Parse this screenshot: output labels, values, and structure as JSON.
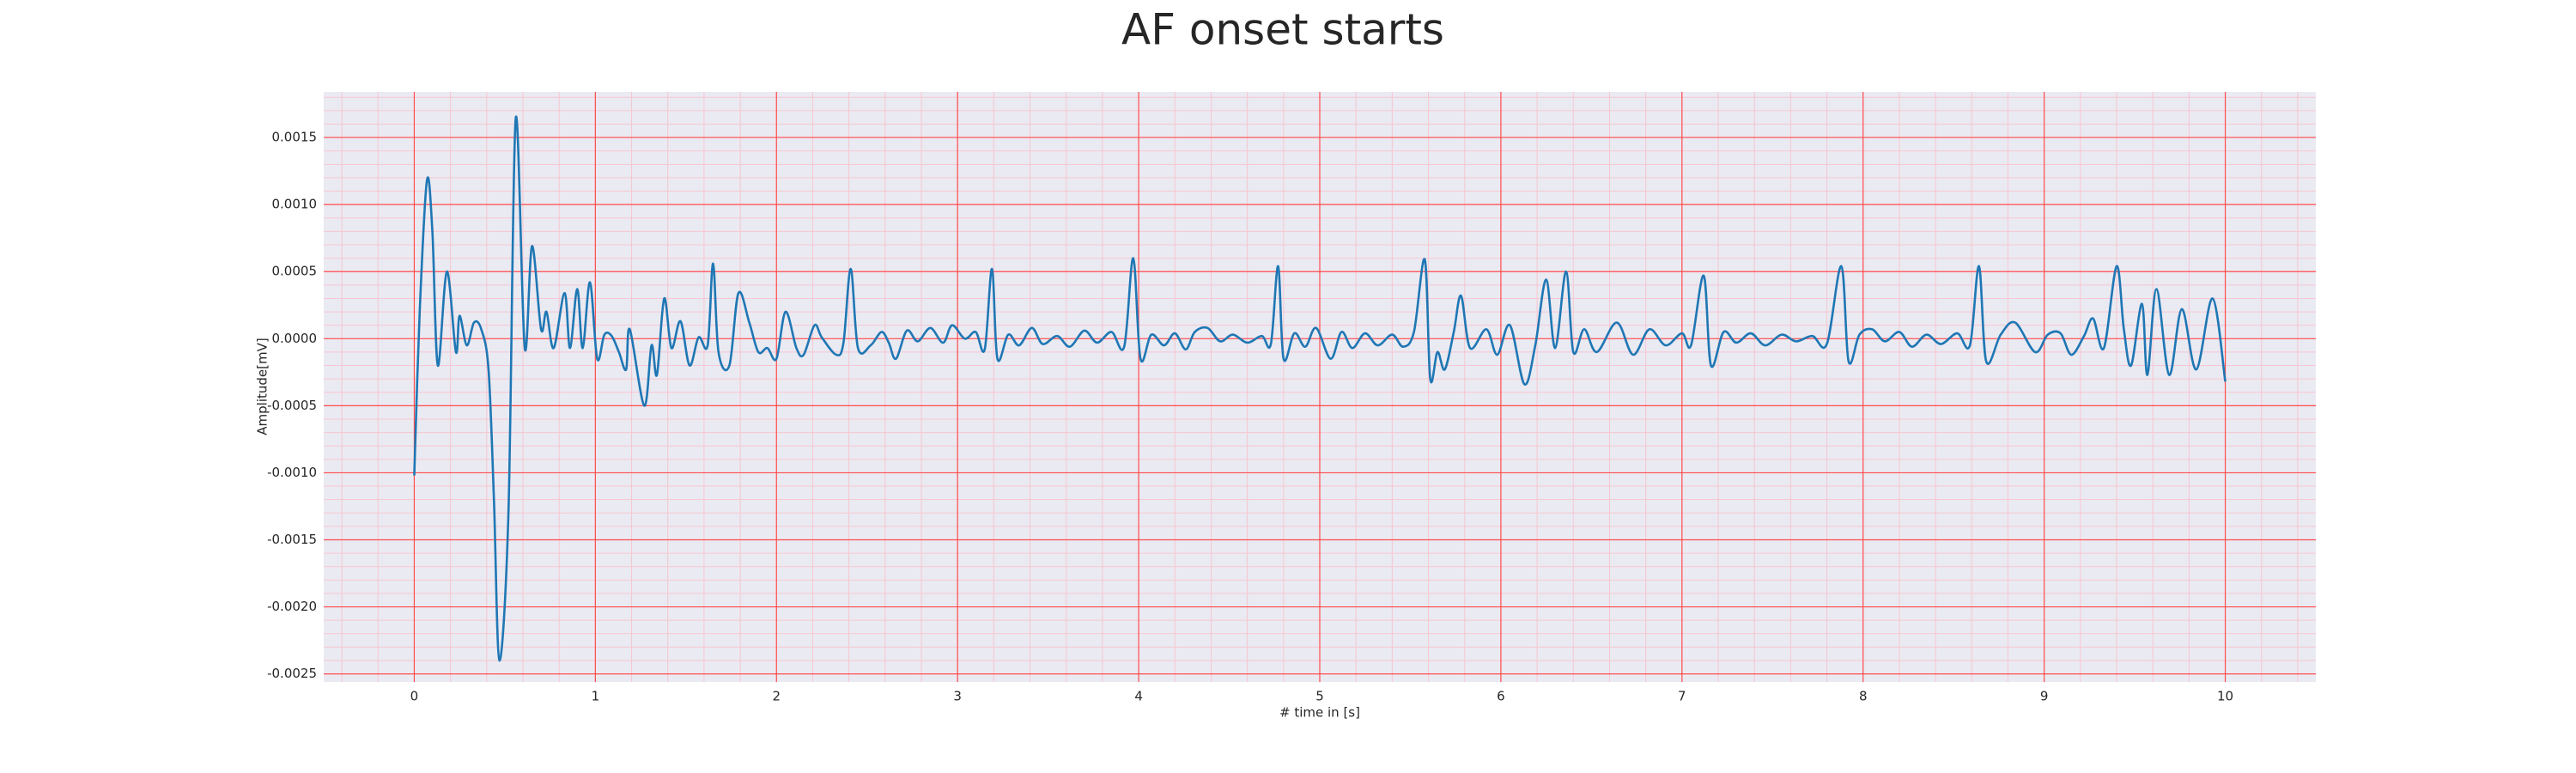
{
  "chart_data": {
    "type": "line",
    "title": "AF onset starts",
    "x_label": "# time in [s]",
    "y_label": "Amplitude[mV]",
    "color": "#1f77b4",
    "grid": true,
    "minor_grid": true,
    "grid_color": "#ff4d4d",
    "minor_grid_color": "#f7c6d0",
    "background": "#eaeaf2",
    "xlim": [
      -0.5,
      10.5
    ],
    "ylim": [
      -0.00256,
      0.00184
    ],
    "xticks": [
      0,
      1,
      2,
      3,
      4,
      5,
      6,
      7,
      8,
      9,
      10
    ],
    "yticks": [
      {
        "value": -0.0025,
        "label": "-0.0025"
      },
      {
        "value": -0.002,
        "label": "-0.0020"
      },
      {
        "value": -0.0015,
        "label": "-0.0015"
      },
      {
        "value": -0.001,
        "label": "-0.0010"
      },
      {
        "value": -0.0005,
        "label": "-0.0005"
      },
      {
        "value": 0,
        "label": "0.0000"
      },
      {
        "value": 0.0005,
        "label": "0.0005"
      },
      {
        "value": 0.001,
        "label": "0.0010"
      },
      {
        "value": 0.0015,
        "label": "0.0015"
      }
    ],
    "x": [
      0,
      0.03,
      0.07,
      0.1,
      0.13,
      0.18,
      0.23,
      0.25,
      0.29,
      0.33,
      0.37,
      0.41,
      0.44,
      0.47,
      0.52,
      0.56,
      0.61,
      0.65,
      0.7,
      0.73,
      0.77,
      0.83,
      0.86,
      0.9,
      0.93,
      0.97,
      1.01,
      1.05,
      1.09,
      1.13,
      1.17,
      1.19,
      1.27,
      1.31,
      1.34,
      1.38,
      1.42,
      1.47,
      1.52,
      1.57,
      1.62,
      1.65,
      1.68,
      1.74,
      1.79,
      1.85,
      1.9,
      1.95,
      2.0,
      2.05,
      2.11,
      2.15,
      2.21,
      2.25,
      2.33,
      2.37,
      2.41,
      2.45,
      2.52,
      2.58,
      2.62,
      2.66,
      2.72,
      2.78,
      2.85,
      2.92,
      2.97,
      3.04,
      3.1,
      3.15,
      3.19,
      3.22,
      3.28,
      3.34,
      3.41,
      3.47,
      3.55,
      3.62,
      3.7,
      3.77,
      3.85,
      3.92,
      3.97,
      4.01,
      4.07,
      4.14,
      4.2,
      4.26,
      4.31,
      4.38,
      4.45,
      4.52,
      4.6,
      4.68,
      4.73,
      4.77,
      4.8,
      4.86,
      4.92,
      4.98,
      5.06,
      5.12,
      5.18,
      5.25,
      5.32,
      5.4,
      5.46,
      5.52,
      5.58,
      5.61,
      5.65,
      5.69,
      5.74,
      5.78,
      5.83,
      5.92,
      5.98,
      6.05,
      6.13,
      6.19,
      6.25,
      6.3,
      6.36,
      6.4,
      6.46,
      6.53,
      6.64,
      6.73,
      6.82,
      6.91,
      7.0,
      7.05,
      7.12,
      7.16,
      7.23,
      7.3,
      7.38,
      7.46,
      7.55,
      7.63,
      7.72,
      7.8,
      7.88,
      7.92,
      7.98,
      8.05,
      8.12,
      8.2,
      8.27,
      8.35,
      8.43,
      8.52,
      8.59,
      8.64,
      8.68,
      8.76,
      8.84,
      8.95,
      9.02,
      9.09,
      9.15,
      9.22,
      9.27,
      9.33,
      9.4,
      9.44,
      9.48,
      9.54,
      9.57,
      9.62,
      9.69,
      9.76,
      9.84,
      9.93,
      10.0
    ],
    "values": [
      -0.00102,
      0.0002,
      0.00118,
      0.0008,
      -0.0002,
      0.0005,
      -0.0001,
      0.00017,
      -5e-05,
      0.00012,
      7e-05,
      -0.00023,
      -0.0012,
      -0.0024,
      -0.0013,
      0.00164,
      -7e-05,
      0.00069,
      7e-05,
      0.0002,
      -7e-05,
      0.00034,
      -7e-05,
      0.00037,
      -7e-05,
      0.00042,
      -0.00015,
      3e-05,
      2e-05,
      -0.0001,
      -0.00023,
      7e-05,
      -0.0005,
      -5e-05,
      -0.00027,
      0.0003,
      -7e-05,
      0.00013,
      -0.0002,
      1e-05,
      -5e-05,
      0.00056,
      -0.0001,
      -0.0002,
      0.00034,
      0.00012,
      -0.0001,
      -7e-05,
      -0.00015,
      0.0002,
      -7e-05,
      -0.00012,
      0.0001,
      1e-05,
      -0.00012,
      -3e-05,
      0.00052,
      -7e-05,
      -5e-05,
      5e-05,
      -3e-05,
      -0.00015,
      6e-05,
      -2e-05,
      8e-05,
      -3e-05,
      0.0001,
      0,
      5e-05,
      -8e-05,
      0.00052,
      -0.00015,
      3e-05,
      -5e-05,
      8e-05,
      -4e-05,
      2e-05,
      -6e-05,
      6e-05,
      -3e-05,
      5e-05,
      -6e-05,
      0.0006,
      -0.00015,
      3e-05,
      -5e-05,
      4e-05,
      -8e-05,
      5e-05,
      8e-05,
      -2e-05,
      3e-05,
      -3e-05,
      2e-05,
      -4e-05,
      0.00054,
      -0.00015,
      4e-05,
      -6e-05,
      8e-05,
      -0.00015,
      5e-05,
      -7e-05,
      4e-05,
      -5e-05,
      3e-05,
      -6e-05,
      5e-05,
      0.00059,
      -0.0003,
      -0.0001,
      -0.00023,
      5e-05,
      0.00032,
      -7e-05,
      7e-05,
      -0.00012,
      0.0001,
      -0.00034,
      -5e-05,
      0.00044,
      -7e-05,
      0.0005,
      -0.0001,
      7e-05,
      -0.0001,
      0.00012,
      -0.00012,
      7e-05,
      -5e-05,
      4e-05,
      -5e-05,
      0.00047,
      -0.0002,
      5e-05,
      -3e-05,
      4e-05,
      -5e-05,
      3e-05,
      -2e-05,
      2e-05,
      -4e-05,
      0.00054,
      -0.00017,
      3e-05,
      7e-05,
      -2e-05,
      5e-05,
      -6e-05,
      3e-05,
      -4e-05,
      4e-05,
      -5e-05,
      0.00054,
      -0.00017,
      3e-05,
      0.00012,
      -0.0001,
      3e-05,
      4e-05,
      -0.00012,
      2e-05,
      0.00015,
      -7e-05,
      0.00054,
      7e-05,
      -0.0002,
      0.00026,
      -0.00027,
      0.00037,
      -0.00027,
      0.00022,
      -0.00023,
      0.0003,
      -0.00032
    ]
  }
}
